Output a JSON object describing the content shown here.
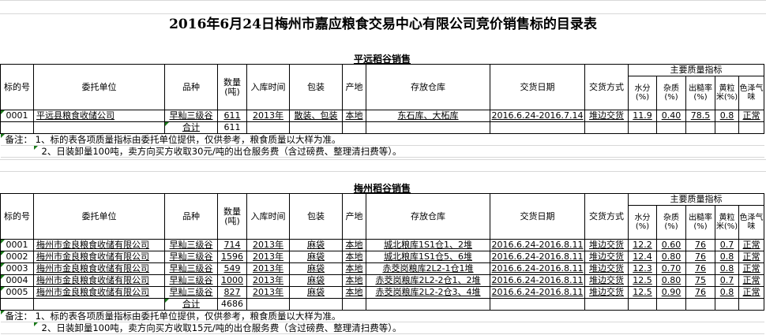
{
  "title": "2016年6月24日梅州市嘉应粮食交易中心有限公司竞价销售标的目录表",
  "headers": {
    "lot": "标的号",
    "entrust": "委托单位",
    "variety": "品种",
    "qty": "数量(吨)",
    "stock_time": "入库时间",
    "packing": "包装",
    "origin": "产地",
    "warehouse": "存放仓库",
    "delivery_date": "交货日期",
    "delivery_method": "交货方式",
    "quality": "主要质量指标",
    "moisture": "水分(%)",
    "impurity": "杂质(%)",
    "yield": "出糙率(%)",
    "yellow": "黄粒米(%)",
    "color": "色泽气味"
  },
  "sections": [
    {
      "title": "平远稻谷销售",
      "rows": [
        {
          "lot": "0001",
          "entrust": "平远县粮食收储公司",
          "variety": "早籼三级谷",
          "qty": "611",
          "stock_time": "2013年",
          "packing": "散装、包装",
          "origin": "本地",
          "warehouse": "东石库、大柘库",
          "delivery_date": "2016.6.24-2016.7.14",
          "delivery_method": "堆边交货",
          "moisture": "11.9",
          "impurity": "0.40",
          "yield": "78.5",
          "yellow": "0.8",
          "color": "正常"
        }
      ],
      "total_label": "合计",
      "total": "611",
      "notes": [
        "备注：  1、标的表各项质量指标由委托单位提供，仅供参考，粮食质量以大样为准。",
        "2、日装卸量100吨，卖方向买方收取30元/吨的出仓服务费（含过磅费、整理清扫费等）。"
      ]
    },
    {
      "title": "梅州稻谷销售",
      "rows": [
        {
          "lot": "0001",
          "entrust": "梅州市金良粮食收储有限公司",
          "variety": "早籼三级谷",
          "qty": "714",
          "stock_time": "2013年",
          "packing": "麻袋",
          "origin": "本地",
          "warehouse": "城北粮库1S1仓1、2堆",
          "delivery_date": "2016.6.24-2016.8.11",
          "delivery_method": "堆边交货",
          "moisture": "12.2",
          "impurity": "0.60",
          "yield": "76",
          "yellow": "0.7",
          "color": "正常"
        },
        {
          "lot": "0002",
          "entrust": "梅州市金良粮食收储有限公司",
          "variety": "早籼三级谷",
          "qty": "1596",
          "stock_time": "2013年",
          "packing": "麻袋",
          "origin": "本地",
          "warehouse": "城北粮库1S1仓5、6堆",
          "delivery_date": "2016.6.24-2016.8.11",
          "delivery_method": "堆边交货",
          "moisture": "12.4",
          "impurity": "0.80",
          "yield": "76",
          "yellow": "0.8",
          "color": "正常"
        },
        {
          "lot": "0003",
          "entrust": "梅州市金良粮食收储有限公司",
          "variety": "早籼三级谷",
          "qty": "549",
          "stock_time": "2013年",
          "packing": "麻袋",
          "origin": "本地",
          "warehouse": "赤茭岗粮库2L2-1仓1堆",
          "delivery_date": "2016.6.24-2016.8.11",
          "delivery_method": "堆边交货",
          "moisture": "12.3",
          "impurity": "0.70",
          "yield": "76",
          "yellow": "0.8",
          "color": "正常"
        },
        {
          "lot": "0004",
          "entrust": "梅州市金良粮食收储有限公司",
          "variety": "早籼三级谷",
          "qty": "1000",
          "stock_time": "2013年",
          "packing": "麻袋",
          "origin": "本地",
          "warehouse": "赤茭岗粮库2L2-2仓1、2堆",
          "delivery_date": "2016.6.24-2016.8.11",
          "delivery_method": "堆边交货",
          "moisture": "12.5",
          "impurity": "0.80",
          "yield": "75",
          "yellow": "0.7",
          "color": "正常"
        },
        {
          "lot": "0005",
          "entrust": "梅州市金良粮食收储有限公司",
          "variety": "早籼三级谷",
          "qty": "827",
          "stock_time": "2013年",
          "packing": "麻袋",
          "origin": "本地",
          "warehouse": "赤茭岗粮库2L2-2仓3、4堆",
          "delivery_date": "2016.6.24-2016.8.11",
          "delivery_method": "堆边交货",
          "moisture": "12.5",
          "impurity": "0.90",
          "yield": "76",
          "yellow": "0.8",
          "color": "正常"
        }
      ],
      "total_label": "合计",
      "total": "4686",
      "notes": [
        "备注：  1、标的表各项质量指标由委托单位提供，仅供参考，粮食质量以大样为准。",
        "2、日装卸量100吨，卖方向买方收取15元/吨的出仓服务费（含过磅费、整理清扫费等）。"
      ]
    }
  ]
}
